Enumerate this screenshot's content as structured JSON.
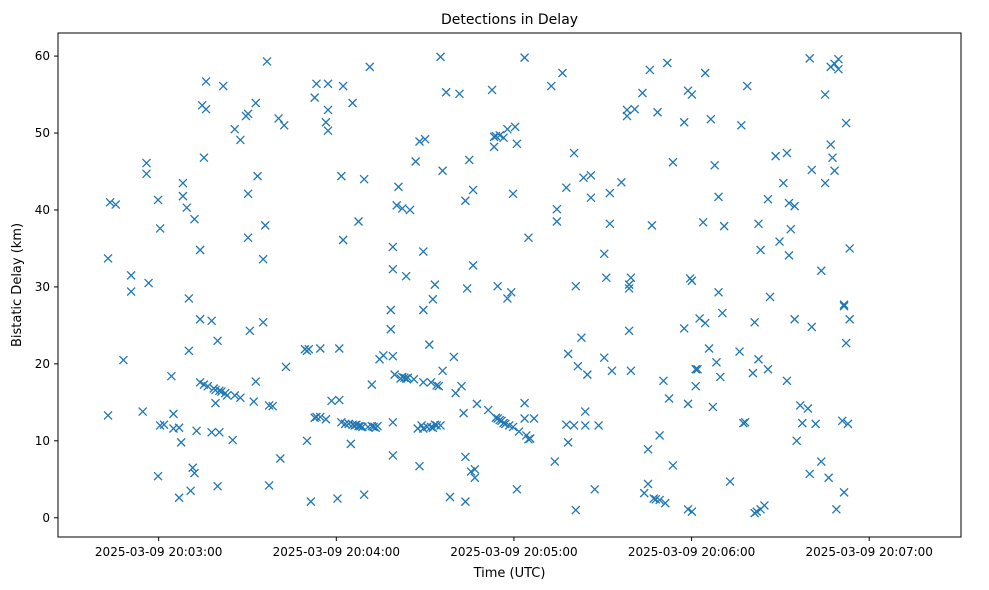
{
  "chart_data": {
    "type": "scatter",
    "title": "Detections in Delay",
    "xlabel": "Time (UTC)",
    "ylabel": "Bistatic Delay (km)",
    "x_range_seconds_after_20_02_30": [
      -4.0,
      301.0
    ],
    "ylim": [
      -2.5,
      63.0
    ],
    "x_ticks": [
      {
        "label": "2025-03-09 20:03:00",
        "value": 30
      },
      {
        "label": "2025-03-09 20:04:00",
        "value": 90
      },
      {
        "label": "2025-03-09 20:05:00",
        "value": 150
      },
      {
        "label": "2025-03-09 20:06:00",
        "value": 210
      },
      {
        "label": "2025-03-09 20:07:00",
        "value": 270
      }
    ],
    "y_ticks": [
      {
        "label": "0",
        "value": 0
      },
      {
        "label": "10",
        "value": 10
      },
      {
        "label": "20",
        "value": 20
      },
      {
        "label": "30",
        "value": 30
      },
      {
        "label": "40",
        "value": 40
      },
      {
        "label": "50",
        "value": 50
      },
      {
        "label": "60",
        "value": 60
      }
    ],
    "grid": false,
    "marker": "x",
    "color": "#1f77b4",
    "points": [
      [
        12.9,
        33.7
      ],
      [
        12.9,
        13.3
      ],
      [
        13.6,
        41.0
      ],
      [
        15.5,
        40.7
      ],
      [
        18.1,
        20.5
      ],
      [
        20.7,
        31.5
      ],
      [
        20.7,
        29.4
      ],
      [
        24.6,
        13.8
      ],
      [
        25.9,
        44.7
      ],
      [
        25.9,
        46.1
      ],
      [
        26.6,
        30.5
      ],
      [
        29.8,
        41.3
      ],
      [
        29.8,
        5.4
      ],
      [
        30.5,
        12.0
      ],
      [
        30.5,
        37.6
      ],
      [
        31.8,
        12.1
      ],
      [
        34.3,
        18.4
      ],
      [
        35.0,
        11.6
      ],
      [
        35.0,
        13.5
      ],
      [
        36.9,
        11.7
      ],
      [
        36.9,
        2.6
      ],
      [
        37.6,
        9.8
      ],
      [
        38.2,
        41.8
      ],
      [
        38.2,
        43.5
      ],
      [
        39.5,
        40.3
      ],
      [
        40.2,
        28.5
      ],
      [
        40.2,
        21.7
      ],
      [
        40.8,
        3.5
      ],
      [
        41.5,
        6.5
      ],
      [
        42.1,
        5.8
      ],
      [
        42.1,
        38.8
      ],
      [
        42.8,
        11.3
      ],
      [
        44.0,
        17.6
      ],
      [
        44.0,
        34.8
      ],
      [
        44.0,
        25.8
      ],
      [
        44.7,
        53.6
      ],
      [
        45.3,
        17.3
      ],
      [
        45.3,
        46.8
      ],
      [
        46.0,
        56.7
      ],
      [
        46.0,
        53.1
      ],
      [
        46.6,
        17.1
      ],
      [
        47.9,
        25.6
      ],
      [
        47.9,
        11.1
      ],
      [
        48.6,
        16.8
      ],
      [
        49.2,
        16.6
      ],
      [
        49.2,
        14.9
      ],
      [
        49.9,
        23.0
      ],
      [
        49.9,
        4.1
      ],
      [
        50.5,
        11.1
      ],
      [
        50.5,
        16.5
      ],
      [
        51.2,
        16.4
      ],
      [
        51.8,
        56.1
      ],
      [
        52.5,
        16.2
      ],
      [
        53.1,
        15.9
      ],
      [
        55.0,
        10.1
      ],
      [
        55.7,
        15.9
      ],
      [
        55.7,
        50.5
      ],
      [
        57.6,
        49.1
      ],
      [
        57.6,
        15.6
      ],
      [
        59.5,
        52.2
      ],
      [
        60.2,
        52.5
      ],
      [
        60.2,
        36.4
      ],
      [
        60.2,
        42.1
      ],
      [
        60.8,
        24.3
      ],
      [
        62.1,
        15.1
      ],
      [
        62.8,
        17.7
      ],
      [
        62.8,
        53.9
      ],
      [
        63.4,
        44.4
      ],
      [
        65.3,
        33.6
      ],
      [
        65.3,
        25.4
      ],
      [
        66.0,
        38.0
      ],
      [
        66.6,
        59.3
      ],
      [
        67.3,
        14.6
      ],
      [
        67.3,
        4.2
      ],
      [
        68.5,
        14.5
      ],
      [
        70.5,
        51.9
      ],
      [
        71.1,
        7.7
      ],
      [
        72.4,
        51.0
      ],
      [
        73.0,
        19.6
      ],
      [
        79.4,
        21.9
      ],
      [
        80.1,
        10.0
      ],
      [
        80.1,
        21.7
      ],
      [
        80.7,
        21.9
      ],
      [
        81.4,
        2.1
      ],
      [
        82.7,
        54.6
      ],
      [
        82.7,
        13.0
      ],
      [
        83.3,
        56.4
      ],
      [
        83.3,
        13.1
      ],
      [
        84.6,
        22.0
      ],
      [
        84.6,
        13.1
      ],
      [
        86.5,
        51.4
      ],
      [
        86.5,
        12.8
      ],
      [
        87.2,
        53.0
      ],
      [
        87.2,
        56.4
      ],
      [
        87.2,
        50.3
      ],
      [
        88.4,
        15.2
      ],
      [
        90.4,
        2.5
      ],
      [
        91.0,
        22.0
      ],
      [
        91.0,
        15.3
      ],
      [
        91.7,
        12.4
      ],
      [
        91.7,
        44.4
      ],
      [
        92.3,
        36.1
      ],
      [
        92.3,
        56.1
      ],
      [
        93.0,
        12.2
      ],
      [
        94.2,
        12.2
      ],
      [
        94.9,
        9.6
      ],
      [
        95.5,
        12.1
      ],
      [
        95.5,
        53.9
      ],
      [
        96.2,
        12.0
      ],
      [
        96.8,
        12.1
      ],
      [
        97.5,
        38.5
      ],
      [
        97.5,
        11.9
      ],
      [
        98.1,
        11.9
      ],
      [
        98.8,
        11.8
      ],
      [
        99.4,
        44.0
      ],
      [
        99.4,
        3.0
      ],
      [
        100.7,
        11.8
      ],
      [
        101.3,
        58.6
      ],
      [
        102.0,
        11.9
      ],
      [
        102.0,
        17.3
      ],
      [
        102.6,
        11.8
      ],
      [
        103.3,
        11.7
      ],
      [
        103.9,
        11.9
      ],
      [
        104.6,
        20.6
      ],
      [
        105.9,
        21.1
      ],
      [
        108.4,
        27.0
      ],
      [
        108.4,
        24.5
      ],
      [
        109.1,
        35.2
      ],
      [
        109.1,
        32.3
      ],
      [
        109.1,
        21.0
      ],
      [
        109.1,
        8.1
      ],
      [
        109.1,
        12.4
      ],
      [
        109.7,
        18.6
      ],
      [
        110.4,
        40.6
      ],
      [
        111.0,
        43.0
      ],
      [
        111.7,
        18.1
      ],
      [
        112.3,
        40.2
      ],
      [
        112.3,
        18.3
      ],
      [
        113.0,
        18.2
      ],
      [
        113.6,
        18.1
      ],
      [
        113.6,
        31.4
      ],
      [
        114.2,
        18.2
      ],
      [
        114.9,
        40.0
      ],
      [
        116.2,
        18.0
      ],
      [
        116.8,
        46.3
      ],
      [
        117.5,
        11.6
      ],
      [
        118.1,
        6.7
      ],
      [
        118.1,
        48.9
      ],
      [
        118.8,
        12.0
      ],
      [
        119.4,
        34.6
      ],
      [
        119.4,
        11.6
      ],
      [
        119.4,
        27.0
      ],
      [
        119.4,
        17.6
      ],
      [
        120.0,
        49.2
      ],
      [
        120.7,
        11.8
      ],
      [
        121.4,
        22.5
      ],
      [
        122.0,
        11.8
      ],
      [
        122.0,
        17.6
      ],
      [
        122.6,
        28.4
      ],
      [
        122.6,
        11.7
      ],
      [
        123.3,
        12.1
      ],
      [
        123.3,
        30.3
      ],
      [
        123.9,
        17.2
      ],
      [
        123.9,
        12.0
      ],
      [
        124.6,
        17.1
      ],
      [
        125.2,
        12.0
      ],
      [
        125.2,
        59.9
      ],
      [
        125.9,
        19.1
      ],
      [
        125.9,
        45.1
      ],
      [
        127.1,
        55.3
      ],
      [
        128.4,
        2.7
      ],
      [
        129.7,
        20.9
      ],
      [
        130.3,
        16.2
      ],
      [
        131.6,
        55.1
      ],
      [
        132.3,
        17.1
      ],
      [
        133.0,
        13.6
      ],
      [
        133.6,
        7.9
      ],
      [
        133.6,
        41.2
      ],
      [
        133.6,
        2.1
      ],
      [
        134.2,
        29.8
      ],
      [
        134.9,
        46.5
      ],
      [
        135.5,
        6.0
      ],
      [
        136.2,
        42.6
      ],
      [
        136.2,
        32.8
      ],
      [
        136.8,
        5.2
      ],
      [
        136.8,
        6.3
      ],
      [
        137.5,
        14.8
      ],
      [
        141.3,
        14.0
      ],
      [
        142.6,
        55.6
      ],
      [
        143.3,
        48.2
      ],
      [
        143.3,
        49.5
      ],
      [
        143.9,
        49.6
      ],
      [
        143.9,
        13.0
      ],
      [
        144.5,
        12.9
      ],
      [
        144.5,
        30.1
      ],
      [
        145.2,
        12.7
      ],
      [
        145.2,
        49.7
      ],
      [
        145.8,
        12.6
      ],
      [
        146.5,
        49.4
      ],
      [
        146.5,
        12.3
      ],
      [
        147.1,
        12.2
      ],
      [
        147.8,
        28.5
      ],
      [
        147.8,
        50.5
      ],
      [
        148.4,
        12.0
      ],
      [
        149.1,
        29.3
      ],
      [
        149.7,
        11.8
      ],
      [
        149.7,
        42.1
      ],
      [
        150.4,
        50.8
      ],
      [
        151.0,
        48.6
      ],
      [
        151.0,
        3.7
      ],
      [
        151.7,
        11.2
      ],
      [
        153.6,
        14.9
      ],
      [
        153.6,
        12.9
      ],
      [
        153.6,
        59.8
      ],
      [
        154.2,
        10.7
      ],
      [
        154.9,
        10.2
      ],
      [
        154.9,
        36.4
      ],
      [
        155.5,
        10.3
      ],
      [
        156.8,
        12.9
      ],
      [
        162.6,
        56.1
      ],
      [
        163.8,
        7.3
      ],
      [
        164.5,
        40.1
      ],
      [
        164.5,
        38.5
      ],
      [
        166.4,
        57.8
      ],
      [
        167.7,
        42.9
      ],
      [
        167.7,
        12.1
      ],
      [
        168.3,
        21.3
      ],
      [
        168.3,
        9.8
      ],
      [
        170.3,
        47.4
      ],
      [
        170.3,
        12.0
      ],
      [
        170.9,
        30.1
      ],
      [
        170.9,
        1.0
      ],
      [
        171.6,
        19.7
      ],
      [
        172.8,
        23.4
      ],
      [
        173.5,
        44.2
      ],
      [
        174.1,
        12.0
      ],
      [
        174.1,
        13.8
      ],
      [
        174.8,
        18.6
      ],
      [
        176.0,
        41.6
      ],
      [
        176.0,
        44.5
      ],
      [
        177.3,
        3.7
      ],
      [
        178.6,
        12.0
      ],
      [
        180.5,
        34.3
      ],
      [
        180.5,
        20.8
      ],
      [
        181.2,
        31.2
      ],
      [
        182.4,
        42.2
      ],
      [
        182.4,
        38.2
      ],
      [
        183.1,
        19.1
      ],
      [
        186.3,
        43.6
      ],
      [
        188.2,
        52.2
      ],
      [
        188.2,
        53.0
      ],
      [
        188.9,
        30.3
      ],
      [
        188.9,
        29.8
      ],
      [
        188.9,
        24.3
      ],
      [
        189.5,
        19.1
      ],
      [
        189.5,
        31.2
      ],
      [
        190.8,
        53.1
      ],
      [
        193.4,
        55.2
      ],
      [
        194.0,
        3.2
      ],
      [
        195.3,
        8.9
      ],
      [
        195.3,
        4.4
      ],
      [
        195.9,
        58.2
      ],
      [
        196.6,
        38.0
      ],
      [
        197.2,
        2.5
      ],
      [
        197.9,
        2.4
      ],
      [
        198.5,
        52.7
      ],
      [
        199.2,
        10.7
      ],
      [
        199.2,
        2.3
      ],
      [
        200.5,
        17.8
      ],
      [
        201.1,
        1.9
      ],
      [
        201.8,
        59.1
      ],
      [
        202.4,
        15.5
      ],
      [
        203.7,
        46.2
      ],
      [
        203.7,
        6.8
      ],
      [
        207.5,
        51.4
      ],
      [
        207.5,
        24.6
      ],
      [
        208.8,
        55.5
      ],
      [
        208.8,
        14.8
      ],
      [
        208.8,
        1.1
      ],
      [
        209.5,
        31.1
      ],
      [
        210.1,
        30.8
      ],
      [
        210.1,
        55.0
      ],
      [
        210.1,
        0.8
      ],
      [
        211.4,
        19.3
      ],
      [
        211.4,
        17.1
      ],
      [
        212.0,
        19.3
      ],
      [
        212.7,
        25.9
      ],
      [
        213.9,
        38.4
      ],
      [
        214.6,
        25.3
      ],
      [
        214.6,
        57.8
      ],
      [
        215.9,
        22.0
      ],
      [
        216.5,
        51.8
      ],
      [
        217.2,
        14.4
      ],
      [
        217.8,
        45.8
      ],
      [
        218.4,
        20.2
      ],
      [
        219.1,
        29.3
      ],
      [
        219.1,
        41.7
      ],
      [
        219.7,
        18.3
      ],
      [
        220.4,
        26.6
      ],
      [
        221.0,
        37.9
      ],
      [
        223.0,
        4.7
      ],
      [
        226.2,
        21.6
      ],
      [
        226.8,
        51.0
      ],
      [
        227.5,
        12.3
      ],
      [
        228.1,
        12.4
      ],
      [
        228.8,
        56.1
      ],
      [
        230.7,
        18.8
      ],
      [
        231.3,
        25.4
      ],
      [
        231.3,
        0.6
      ],
      [
        232.0,
        0.8
      ],
      [
        232.6,
        38.2
      ],
      [
        232.6,
        20.6
      ],
      [
        233.3,
        1.1
      ],
      [
        233.3,
        34.8
      ],
      [
        234.6,
        1.6
      ],
      [
        235.8,
        19.3
      ],
      [
        235.8,
        41.4
      ],
      [
        236.5,
        28.7
      ],
      [
        238.4,
        47.0
      ],
      [
        239.7,
        35.9
      ],
      [
        241.0,
        43.5
      ],
      [
        242.2,
        17.8
      ],
      [
        242.2,
        47.4
      ],
      [
        242.9,
        34.1
      ],
      [
        242.9,
        40.9
      ],
      [
        243.5,
        37.5
      ],
      [
        244.8,
        40.5
      ],
      [
        244.8,
        25.8
      ],
      [
        245.5,
        10.0
      ],
      [
        246.7,
        14.6
      ],
      [
        247.4,
        12.3
      ],
      [
        249.3,
        14.2
      ],
      [
        249.9,
        59.7
      ],
      [
        249.9,
        5.7
      ],
      [
        250.6,
        45.2
      ],
      [
        250.6,
        24.8
      ],
      [
        251.9,
        12.2
      ],
      [
        253.8,
        32.1
      ],
      [
        253.8,
        7.3
      ],
      [
        255.1,
        43.5
      ],
      [
        255.1,
        55.0
      ],
      [
        256.3,
        5.2
      ],
      [
        257.0,
        58.6
      ],
      [
        257.0,
        48.5
      ],
      [
        257.6,
        46.8
      ],
      [
        258.3,
        59.0
      ],
      [
        258.3,
        45.1
      ],
      [
        258.9,
        1.1
      ],
      [
        259.6,
        59.6
      ],
      [
        259.6,
        58.3
      ],
      [
        260.9,
        12.6
      ],
      [
        261.5,
        27.5
      ],
      [
        261.5,
        27.7
      ],
      [
        261.5,
        3.3
      ],
      [
        262.2,
        51.3
      ],
      [
        262.2,
        22.7
      ],
      [
        262.8,
        12.2
      ],
      [
        263.4,
        35.0
      ],
      [
        263.4,
        25.8
      ]
    ]
  }
}
